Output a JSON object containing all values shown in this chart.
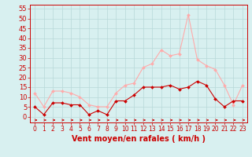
{
  "hours": [
    0,
    1,
    2,
    3,
    4,
    5,
    6,
    7,
    8,
    9,
    10,
    11,
    12,
    13,
    14,
    15,
    16,
    17,
    18,
    19,
    20,
    21,
    22,
    23
  ],
  "wind_mean": [
    5,
    1,
    7,
    7,
    6,
    6,
    1,
    3,
    1,
    8,
    8,
    11,
    15,
    15,
    15,
    16,
    14,
    15,
    18,
    16,
    9,
    5,
    8,
    8
  ],
  "wind_gust": [
    12,
    5,
    13,
    13,
    12,
    10,
    6,
    5,
    5,
    12,
    16,
    17,
    25,
    27,
    34,
    31,
    32,
    52,
    29,
    26,
    24,
    16,
    6,
    16
  ],
  "mean_color": "#cc0000",
  "gust_color": "#ffaaaa",
  "bg_color": "#d8f0f0",
  "grid_color": "#b8d8d8",
  "axis_color": "#cc0000",
  "xlabel": "Vent moyen/en rafales ( km/h )",
  "ylabel_ticks": [
    0,
    5,
    10,
    15,
    20,
    25,
    30,
    35,
    40,
    45,
    50,
    55
  ],
  "ylim": [
    -3,
    57
  ],
  "xlim": [
    -0.5,
    23.5
  ],
  "label_fontsize": 7,
  "tick_fontsize": 6
}
